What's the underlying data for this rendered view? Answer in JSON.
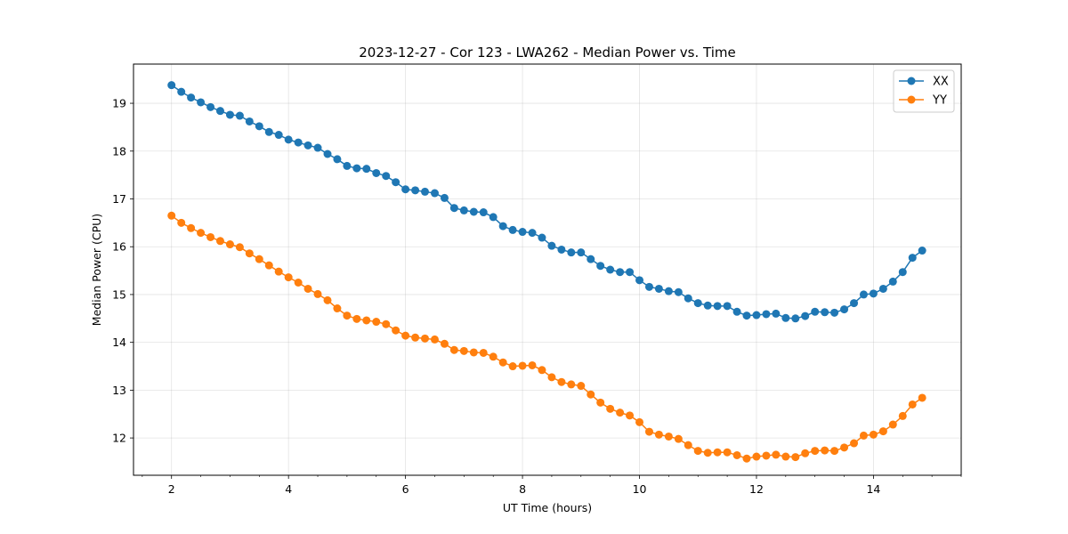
{
  "chart_data": {
    "type": "line",
    "title": "2023-12-27 - Cor 123 - LWA262 - Median Power vs. Time",
    "xlabel": "UT Time (hours)",
    "ylabel": "Median Power (CPU)",
    "xlim": [
      1.35,
      15.5
    ],
    "ylim": [
      11.22,
      19.82
    ],
    "xticks": [
      2,
      4,
      6,
      8,
      10,
      12,
      14
    ],
    "yticks": [
      12,
      13,
      14,
      15,
      16,
      17,
      18,
      19
    ],
    "grid": true,
    "legend_position": "top-right",
    "x": [
      2.0,
      2.167,
      2.333,
      2.5,
      2.667,
      2.833,
      3.0,
      3.167,
      3.333,
      3.5,
      3.667,
      3.833,
      4.0,
      4.167,
      4.333,
      4.5,
      4.667,
      4.833,
      5.0,
      5.167,
      5.333,
      5.5,
      5.667,
      5.833,
      6.0,
      6.167,
      6.333,
      6.5,
      6.667,
      6.833,
      7.0,
      7.167,
      7.333,
      7.5,
      7.667,
      7.833,
      8.0,
      8.167,
      8.333,
      8.5,
      8.667,
      8.833,
      9.0,
      9.167,
      9.333,
      9.5,
      9.667,
      9.833,
      10.0,
      10.167,
      10.333,
      10.5,
      10.667,
      10.833,
      11.0,
      11.167,
      11.333,
      11.5,
      11.667,
      11.833,
      12.0,
      12.167,
      12.333,
      12.5,
      12.667,
      12.833,
      13.0,
      13.167,
      13.333,
      13.5,
      13.667,
      13.833,
      14.0,
      14.167,
      14.333,
      14.5,
      14.667,
      14.833
    ],
    "series": [
      {
        "name": "XX",
        "color": "#1f77b4",
        "values": [
          19.38,
          19.24,
          19.12,
          19.02,
          18.92,
          18.84,
          18.76,
          18.74,
          18.62,
          18.52,
          18.4,
          18.34,
          18.24,
          18.18,
          18.12,
          18.07,
          17.94,
          17.83,
          17.69,
          17.64,
          17.63,
          17.54,
          17.48,
          17.35,
          17.2,
          17.18,
          17.15,
          17.12,
          17.02,
          16.81,
          16.76,
          16.73,
          16.72,
          16.62,
          16.43,
          16.35,
          16.31,
          16.29,
          16.19,
          16.02,
          15.94,
          15.88,
          15.88,
          15.74,
          15.6,
          15.52,
          15.47,
          15.47,
          15.3,
          15.16,
          15.12,
          15.07,
          15.05,
          14.92,
          14.82,
          14.77,
          14.76,
          14.76,
          14.64,
          14.56,
          14.57,
          14.59,
          14.6,
          14.51,
          14.5,
          14.55,
          14.64,
          14.63,
          14.62,
          14.69,
          14.82,
          15.0,
          15.02,
          15.12,
          15.27,
          15.47,
          15.77,
          15.92
        ]
      },
      {
        "name": "YY",
        "color": "#ff7f0e",
        "values": [
          16.65,
          16.5,
          16.39,
          16.29,
          16.2,
          16.12,
          16.05,
          15.99,
          15.86,
          15.74,
          15.61,
          15.48,
          15.36,
          15.25,
          15.12,
          15.01,
          14.88,
          14.71,
          14.56,
          14.49,
          14.46,
          14.43,
          14.38,
          14.25,
          14.14,
          14.1,
          14.08,
          14.06,
          13.97,
          13.84,
          13.82,
          13.79,
          13.78,
          13.7,
          13.58,
          13.5,
          13.51,
          13.52,
          13.42,
          13.27,
          13.17,
          13.12,
          13.09,
          12.91,
          12.74,
          12.61,
          12.53,
          12.47,
          12.33,
          12.13,
          12.07,
          12.03,
          11.98,
          11.85,
          11.73,
          11.69,
          11.7,
          11.7,
          11.64,
          11.57,
          11.61,
          11.63,
          11.65,
          11.61,
          11.6,
          11.68,
          11.73,
          11.74,
          11.73,
          11.8,
          11.89,
          12.05,
          12.07,
          12.14,
          12.28,
          12.46,
          12.7,
          12.84
        ]
      }
    ]
  }
}
